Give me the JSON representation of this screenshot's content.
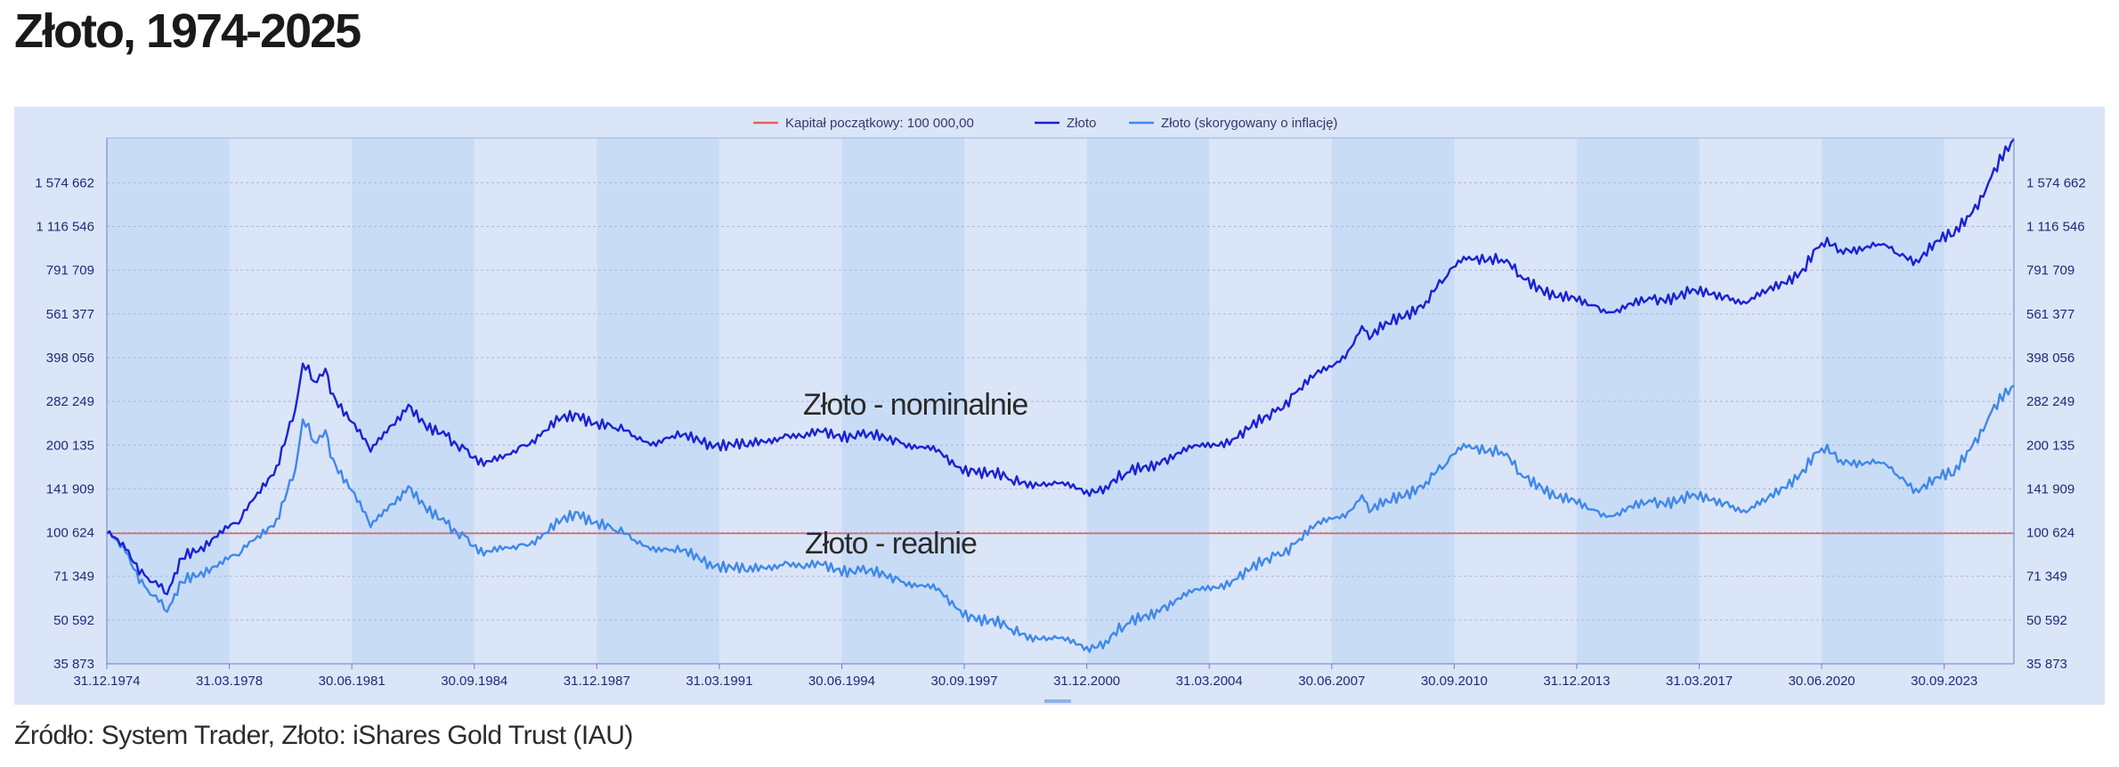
{
  "page": {
    "title": "Złoto, 1974-2025",
    "source": "Źródło: System Trader, Złoto: iShares Gold Trust (IAU)"
  },
  "colors": {
    "panel_bg": "#dbe5f8",
    "band_bg": "#c9dcf6",
    "initial_capital_line": "#e06060",
    "nominal_line": "#1a22d6",
    "real_line": "#3f88ea",
    "axis_text": "#1e2a78"
  },
  "chart_data": {
    "type": "line",
    "scale": "log",
    "x_tick_labels": [
      "31.12.1974",
      "31.03.1978",
      "30.06.1981",
      "30.09.1984",
      "31.12.1987",
      "31.03.1991",
      "30.06.1994",
      "30.09.1997",
      "31.12.2000",
      "31.03.2004",
      "30.06.2007",
      "30.09.2010",
      "31.12.2013",
      "31.03.2017",
      "30.06.2020",
      "30.09.2023"
    ],
    "y_tick_labels": [
      "35 873",
      "50 592",
      "71 349",
      "100 624",
      "141 909",
      "200 135",
      "282 249",
      "398 056",
      "561 377",
      "791 709",
      "1 116 546",
      "1 574 662"
    ],
    "y_ticks": [
      35873,
      50592,
      71349,
      100624,
      141909,
      200135,
      282249,
      398056,
      561377,
      791709,
      1116546,
      1574662
    ],
    "ylim": [
      35873,
      2240000
    ],
    "xlim": [
      1975.0,
      2025.6
    ],
    "grid": true,
    "legend_position": "top-center",
    "annotations": [
      "Złoto - nominalnie",
      "Złoto - realnie"
    ],
    "series": [
      {
        "name": "Kapitał początkowy: 100 000,00",
        "color": "#e06060",
        "x": [
          1975.0,
          2025.6
        ],
        "y": [
          100000,
          100000
        ]
      },
      {
        "name": "Złoto",
        "color": "#1a22d6",
        "x": [
          1975.0,
          1975.5,
          1976.0,
          1976.6,
          1977.0,
          1977.5,
          1978.0,
          1978.5,
          1979.0,
          1979.5,
          1980.0,
          1980.2,
          1980.5,
          1980.8,
          1981.0,
          1981.5,
          1982.0,
          1982.5,
          1983.0,
          1983.5,
          1984.0,
          1984.5,
          1985.0,
          1985.5,
          1986.0,
          1986.5,
          1987.0,
          1987.5,
          1988.0,
          1988.5,
          1989.0,
          1989.5,
          1990.0,
          1991.0,
          1992.0,
          1993.0,
          1993.5,
          1994.0,
          1995.0,
          1996.0,
          1997.0,
          1997.5,
          1998.0,
          1999.0,
          1999.5,
          2000.0,
          2001.0,
          2001.5,
          2002.0,
          2003.0,
          2004.0,
          2005.0,
          2006.0,
          2006.5,
          2007.0,
          2007.5,
          2008.0,
          2008.3,
          2008.5,
          2009.0,
          2010.0,
          2010.5,
          2011.0,
          2011.7,
          2012.0,
          2012.5,
          2013.0,
          2013.5,
          2014.0,
          2014.5,
          2015.0,
          2015.5,
          2016.0,
          2017.0,
          2018.0,
          2018.5,
          2019.0,
          2020.0,
          2020.5,
          2021.0,
          2022.0,
          2022.5,
          2023.0,
          2023.5,
          2024.0,
          2024.5,
          2025.0,
          2025.6
        ],
        "y": [
          100000,
          88000,
          72000,
          62000,
          82000,
          90000,
          102000,
          108000,
          138000,
          170000,
          265000,
          380000,
          330000,
          365000,
          300000,
          240000,
          190000,
          232000,
          275000,
          225000,
          215000,
          195000,
          170000,
          180000,
          200000,
          215000,
          242000,
          255000,
          240000,
          228000,
          215000,
          205000,
          215000,
          205000,
          198000,
          218000,
          212000,
          222000,
          215000,
          208000,
          190000,
          170000,
          165000,
          152000,
          150000,
          148000,
          140000,
          145000,
          158000,
          178000,
          198000,
          212000,
          260000,
          300000,
          340000,
          370000,
          430000,
          510000,
          460000,
          520000,
          620000,
          740000,
          880000,
          880000,
          860000,
          760000,
          700000,
          640000,
          620000,
          600000,
          570000,
          600000,
          630000,
          660000,
          650000,
          610000,
          660000,
          800000,
          980000,
          930000,
          970000,
          900000,
          860000,
          990000,
          1040000,
          1250000,
          1650000,
          2220000
        ]
      },
      {
        "name": "Złoto (skorygowany o inflację)",
        "color": "#3f88ea",
        "x": [
          1975.0,
          1975.5,
          1976.0,
          1976.6,
          1977.0,
          1977.5,
          1978.0,
          1978.5,
          1979.0,
          1979.5,
          1980.0,
          1980.2,
          1980.5,
          1980.8,
          1981.0,
          1981.5,
          1982.0,
          1982.5,
          1983.0,
          1983.5,
          1984.0,
          1984.5,
          1985.0,
          1985.5,
          1986.0,
          1986.5,
          1987.0,
          1987.5,
          1988.0,
          1988.5,
          1989.0,
          1989.5,
          1990.0,
          1991.0,
          1992.0,
          1993.0,
          1993.5,
          1994.0,
          1995.0,
          1996.0,
          1997.0,
          1997.5,
          1998.0,
          1999.0,
          1999.5,
          2000.0,
          2001.0,
          2001.5,
          2002.0,
          2003.0,
          2004.0,
          2005.0,
          2006.0,
          2006.5,
          2007.0,
          2007.5,
          2008.0,
          2008.3,
          2008.5,
          2009.0,
          2010.0,
          2010.5,
          2011.0,
          2011.7,
          2012.0,
          2012.5,
          2013.0,
          2013.5,
          2014.0,
          2014.5,
          2015.0,
          2015.5,
          2016.0,
          2017.0,
          2018.0,
          2018.5,
          2019.0,
          2020.0,
          2020.5,
          2021.0,
          2022.0,
          2022.5,
          2023.0,
          2023.5,
          2024.0,
          2024.5,
          2025.0,
          2025.6
        ],
        "y": [
          100000,
          86000,
          66000,
          54000,
          68000,
          74000,
          80000,
          84000,
          98000,
          112000,
          165000,
          245000,
          205000,
          225000,
          180000,
          140000,
          105000,
          125000,
          145000,
          118000,
          108000,
          98000,
          84000,
          88000,
          92000,
          96000,
          108000,
          118000,
          110000,
          102000,
          95000,
          90000,
          88000,
          80000,
          74000,
          80000,
          76000,
          78000,
          74000,
          70000,
          64000,
          56000,
          52000,
          47000,
          45000,
          44000,
          41000,
          43000,
          48000,
          56000,
          64000,
          70000,
          84000,
          92000,
          104000,
          112000,
          120000,
          135000,
          118000,
          128000,
          150000,
          170000,
          202000,
          195000,
          190000,
          160000,
          148000,
          132000,
          126000,
          120000,
          115000,
          122000,
          128000,
          132000,
          128000,
          118000,
          128000,
          165000,
          195000,
          178000,
          175000,
          158000,
          142000,
          155000,
          158000,
          200000,
          260000,
          320000
        ]
      }
    ]
  }
}
